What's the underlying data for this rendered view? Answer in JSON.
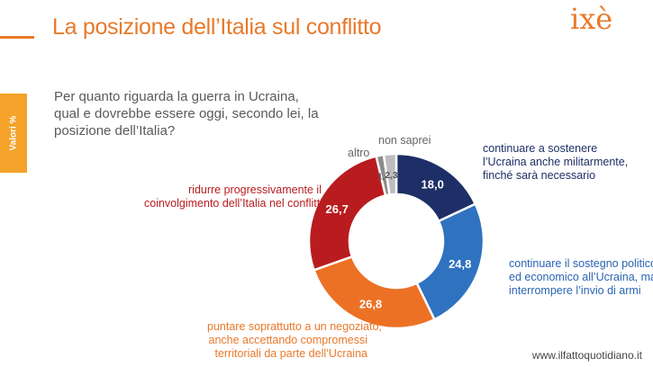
{
  "header": {
    "title": "La posizione dell’Italia sul conflitto",
    "logo": "ixè",
    "side_tab": "Valori %"
  },
  "question": {
    "lines": [
      "Per quanto riguarda la guerra in Ucraina,",
      "qual e dovrebbe essere oggi, secondo lei, la",
      "posizione dell’Italia?"
    ]
  },
  "watermark": "www.ilfattoquotidiano.it",
  "chart_data": {
    "type": "pie",
    "donut": true,
    "title": "",
    "slices": [
      {
        "value": 18.0,
        "value_label": "18,0",
        "color": "#1d2f66",
        "label_lines": [
          "continuare a sostenere",
          "l’Ucraina anche militarmente,",
          "finché sarà necessario"
        ],
        "label_color": "#1d2f66"
      },
      {
        "value": 24.8,
        "value_label": "24,8",
        "color": "#2f73c0",
        "label_lines": [
          "continuare il sostegno politico",
          "ed economico all’Ucraina, ma",
          "interrompere l’invio di armi"
        ],
        "label_color": "#2a64b3"
      },
      {
        "value": 26.8,
        "value_label": "26,8",
        "color": "#ec7125",
        "label_lines": [
          "puntare soprattutto a un negoziato,",
          "anche accettando compromessi",
          "territoriali da parte dell’Ucraina"
        ],
        "label_color": "#e8792a"
      },
      {
        "value": 26.7,
        "value_label": "26,7",
        "color": "#b91c1f",
        "label_lines": [
          "ridurre progressivamente il",
          "coinvolgimento dell’Italia nel conflitto"
        ],
        "label_color": "#b91c1f"
      },
      {
        "value": 1.4,
        "value_label": "1,4",
        "color": "#8c8c8c",
        "label_lines": [
          "altro"
        ],
        "label_color": "#666666"
      },
      {
        "value": 2.3,
        "value_label": "2,3",
        "color": "#bdbdbd",
        "label_lines": [
          "non saprei"
        ],
        "label_color": "#666666"
      }
    ]
  }
}
